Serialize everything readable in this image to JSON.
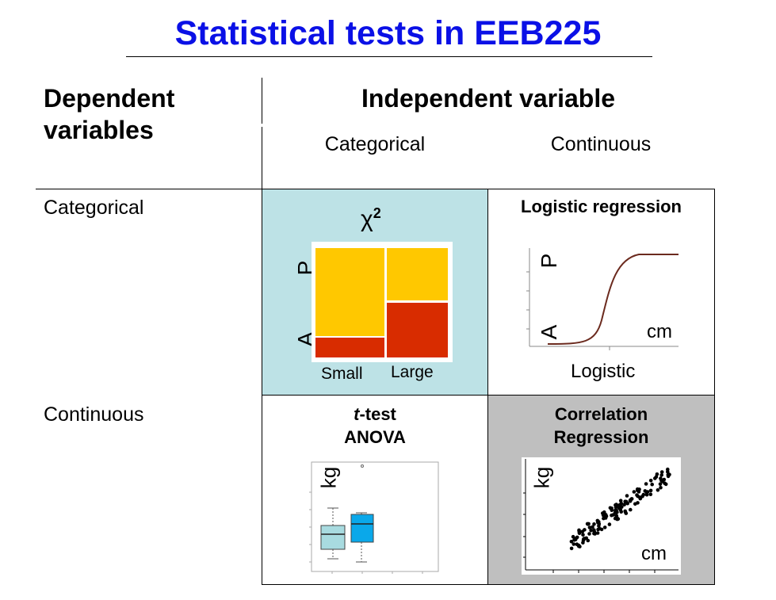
{
  "title": "Statistical tests in EEB225",
  "headers": {
    "dependent": "Dependent\nvariables",
    "independent": "Independent variable",
    "col_categorical": "Categorical",
    "col_continuous": "Continuous"
  },
  "rows": {
    "categorical": "Categorical",
    "continuous": "Continuous"
  },
  "cells": {
    "chi2": {
      "symbol": "χ",
      "superscript": "2",
      "axis_top": "P",
      "axis_bottom": "A",
      "x_small": "Small",
      "x_large": "Large",
      "colors": {
        "bg": "#bde2e6",
        "yellow": "#ffc800",
        "red": "#d82c00"
      }
    },
    "logistic": {
      "title": "Logistic regression",
      "axis_top": "P",
      "axis_bottom": "A",
      "x_unit": "cm",
      "caption": "Logistic",
      "curve_color": "#6b2a1e"
    },
    "ttest": {
      "title_italic": "t",
      "title_rest": "-test",
      "subtitle": "ANOVA",
      "y_unit": "kg",
      "box_colors": [
        "#a8dbe0",
        "#0aa8ea"
      ]
    },
    "correlation": {
      "title_line1": "Correlation",
      "title_line2": "Regression",
      "y_unit": "kg",
      "x_unit": "cm",
      "bg": "#bfbfbf"
    }
  }
}
